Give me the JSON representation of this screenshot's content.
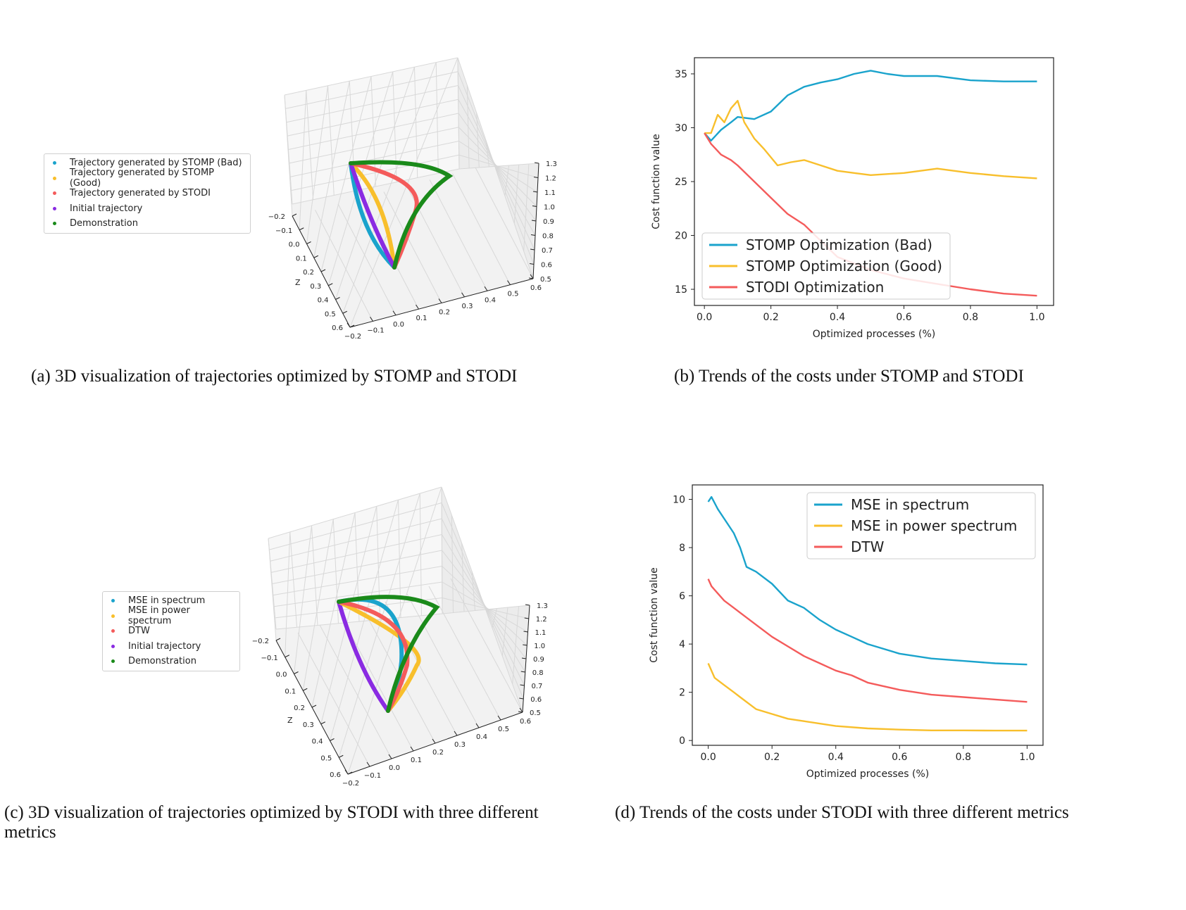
{
  "captions": {
    "a": "(a) 3D visualization of trajectories optimized by STOMP and STODI",
    "b": "(b) Trends of the costs under STOMP and STODI",
    "c_line1": "(c) 3D visualization of trajectories optimized by STODI with three different",
    "c_line2": "metrics",
    "d": "(d) Trends of the costs under STODI with three different metrics"
  },
  "colors": {
    "cyan": "#1aa3cc",
    "yellow": "#f8bf2c",
    "red": "#f45b5b",
    "purple": "#8a2be2",
    "green": "#1a8a1a"
  },
  "legend_a": [
    {
      "label": "Trajectory generated by STOMP (Bad)",
      "color": "#1aa3cc"
    },
    {
      "label": "Trajectory generated by STOMP (Good)",
      "color": "#f8bf2c"
    },
    {
      "label": "Trajectory generated by STODI",
      "color": "#f45b5b"
    },
    {
      "label": "Initial trajectory",
      "color": "#8a2be2"
    },
    {
      "label": "Demonstration",
      "color": "#1a8a1a"
    }
  ],
  "legend_c": [
    {
      "label": "MSE in spectrum",
      "color": "#1aa3cc"
    },
    {
      "label": "MSE in power spectrum",
      "color": "#f8bf2c"
    },
    {
      "label": "DTW",
      "color": "#f45b5b"
    },
    {
      "label": "Initial trajectory",
      "color": "#8a2be2"
    },
    {
      "label": "Demonstration",
      "color": "#1a8a1a"
    }
  ],
  "axes3d": {
    "z_label": "Z",
    "left_ticks": [
      "−0.2",
      "−0.1",
      "0.0",
      "0.1",
      "0.2",
      "0.3",
      "0.4",
      "0.5",
      "0.6"
    ],
    "bottom_ticks": [
      "−0.2",
      "−0.1",
      "0.0",
      "0.1",
      "0.2",
      "0.3",
      "0.4",
      "0.5",
      "0.6"
    ],
    "right_ticks": [
      "0.5",
      "0.6",
      "0.7",
      "0.8",
      "0.9",
      "1.0",
      "1.1",
      "1.2",
      "1.3"
    ]
  },
  "chart_data": [
    {
      "id": "b",
      "type": "line",
      "title": "",
      "xlabel": "Optimized processes (%)",
      "ylabel": "Cost function value",
      "xlim": [
        -0.03,
        1.05
      ],
      "ylim": [
        13.5,
        36.5
      ],
      "xticks": [
        "0.0",
        "0.2",
        "0.4",
        "0.6",
        "0.8",
        "1.0"
      ],
      "yticks": [
        15,
        20,
        25,
        30,
        35
      ],
      "legend_position": "lower-left",
      "series": [
        {
          "name": "STOMP Optimization (Bad)",
          "color": "#1aa3cc",
          "x": [
            0,
            0.02,
            0.05,
            0.08,
            0.1,
            0.15,
            0.2,
            0.25,
            0.3,
            0.35,
            0.4,
            0.45,
            0.5,
            0.55,
            0.6,
            0.7,
            0.8,
            0.9,
            1.0
          ],
          "y": [
            29.5,
            28.8,
            29.8,
            30.5,
            31.0,
            30.8,
            31.5,
            33.0,
            33.8,
            34.2,
            34.5,
            35.0,
            35.3,
            35.0,
            34.8,
            34.8,
            34.4,
            34.3,
            34.3
          ]
        },
        {
          "name": "STOMP Optimization (Good)",
          "color": "#f8bf2c",
          "x": [
            0,
            0.02,
            0.04,
            0.06,
            0.08,
            0.1,
            0.12,
            0.15,
            0.18,
            0.22,
            0.26,
            0.3,
            0.35,
            0.4,
            0.45,
            0.5,
            0.6,
            0.7,
            0.8,
            0.9,
            1.0
          ],
          "y": [
            29.5,
            29.5,
            31.2,
            30.5,
            31.8,
            32.5,
            30.5,
            29.0,
            28.0,
            26.5,
            26.8,
            27.0,
            26.5,
            26.0,
            25.8,
            25.6,
            25.8,
            26.2,
            25.8,
            25.5,
            25.3
          ]
        },
        {
          "name": "STODI Optimization",
          "color": "#f45b5b",
          "x": [
            0,
            0.02,
            0.05,
            0.08,
            0.1,
            0.15,
            0.2,
            0.25,
            0.3,
            0.35,
            0.4,
            0.5,
            0.6,
            0.7,
            0.8,
            0.9,
            1.0
          ],
          "y": [
            29.5,
            28.5,
            27.5,
            27.0,
            26.5,
            25.0,
            23.5,
            22.0,
            21.0,
            19.5,
            18.0,
            16.8,
            16.0,
            15.5,
            15.0,
            14.6,
            14.4
          ]
        }
      ]
    },
    {
      "id": "d",
      "type": "line",
      "title": "",
      "xlabel": "Optimized processes (%)",
      "ylabel": "Cost function value",
      "xlim": [
        -0.05,
        1.05
      ],
      "ylim": [
        -0.2,
        10.6
      ],
      "xticks": [
        "0.0",
        "0.2",
        "0.4",
        "0.6",
        "0.8",
        "1.0"
      ],
      "yticks": [
        0,
        2,
        4,
        6,
        8,
        10
      ],
      "legend_position": "upper-right",
      "series": [
        {
          "name": "MSE in spectrum",
          "color": "#1aa3cc",
          "x": [
            0,
            0.01,
            0.03,
            0.05,
            0.08,
            0.1,
            0.12,
            0.15,
            0.2,
            0.25,
            0.3,
            0.35,
            0.4,
            0.45,
            0.5,
            0.6,
            0.7,
            0.8,
            0.9,
            1.0
          ],
          "y": [
            9.9,
            10.1,
            9.6,
            9.2,
            8.6,
            8.0,
            7.2,
            7.0,
            6.5,
            5.8,
            5.5,
            5.0,
            4.6,
            4.3,
            4.0,
            3.6,
            3.4,
            3.3,
            3.2,
            3.15
          ]
        },
        {
          "name": "MSE in power spectrum",
          "color": "#f8bf2c",
          "x": [
            0,
            0.02,
            0.05,
            0.08,
            0.1,
            0.15,
            0.2,
            0.25,
            0.3,
            0.4,
            0.5,
            0.6,
            0.7,
            0.8,
            0.9,
            1.0
          ],
          "y": [
            3.2,
            2.6,
            2.3,
            2.0,
            1.8,
            1.3,
            1.1,
            0.9,
            0.8,
            0.6,
            0.5,
            0.45,
            0.42,
            0.42,
            0.41,
            0.41
          ]
        },
        {
          "name": "DTW",
          "color": "#f45b5b",
          "x": [
            0,
            0.01,
            0.03,
            0.05,
            0.08,
            0.1,
            0.15,
            0.2,
            0.25,
            0.3,
            0.35,
            0.4,
            0.45,
            0.5,
            0.6,
            0.7,
            0.8,
            0.9,
            1.0
          ],
          "y": [
            6.7,
            6.4,
            6.1,
            5.8,
            5.5,
            5.3,
            4.8,
            4.3,
            3.9,
            3.5,
            3.2,
            2.9,
            2.7,
            2.4,
            2.1,
            1.9,
            1.8,
            1.7,
            1.6
          ]
        }
      ]
    }
  ]
}
